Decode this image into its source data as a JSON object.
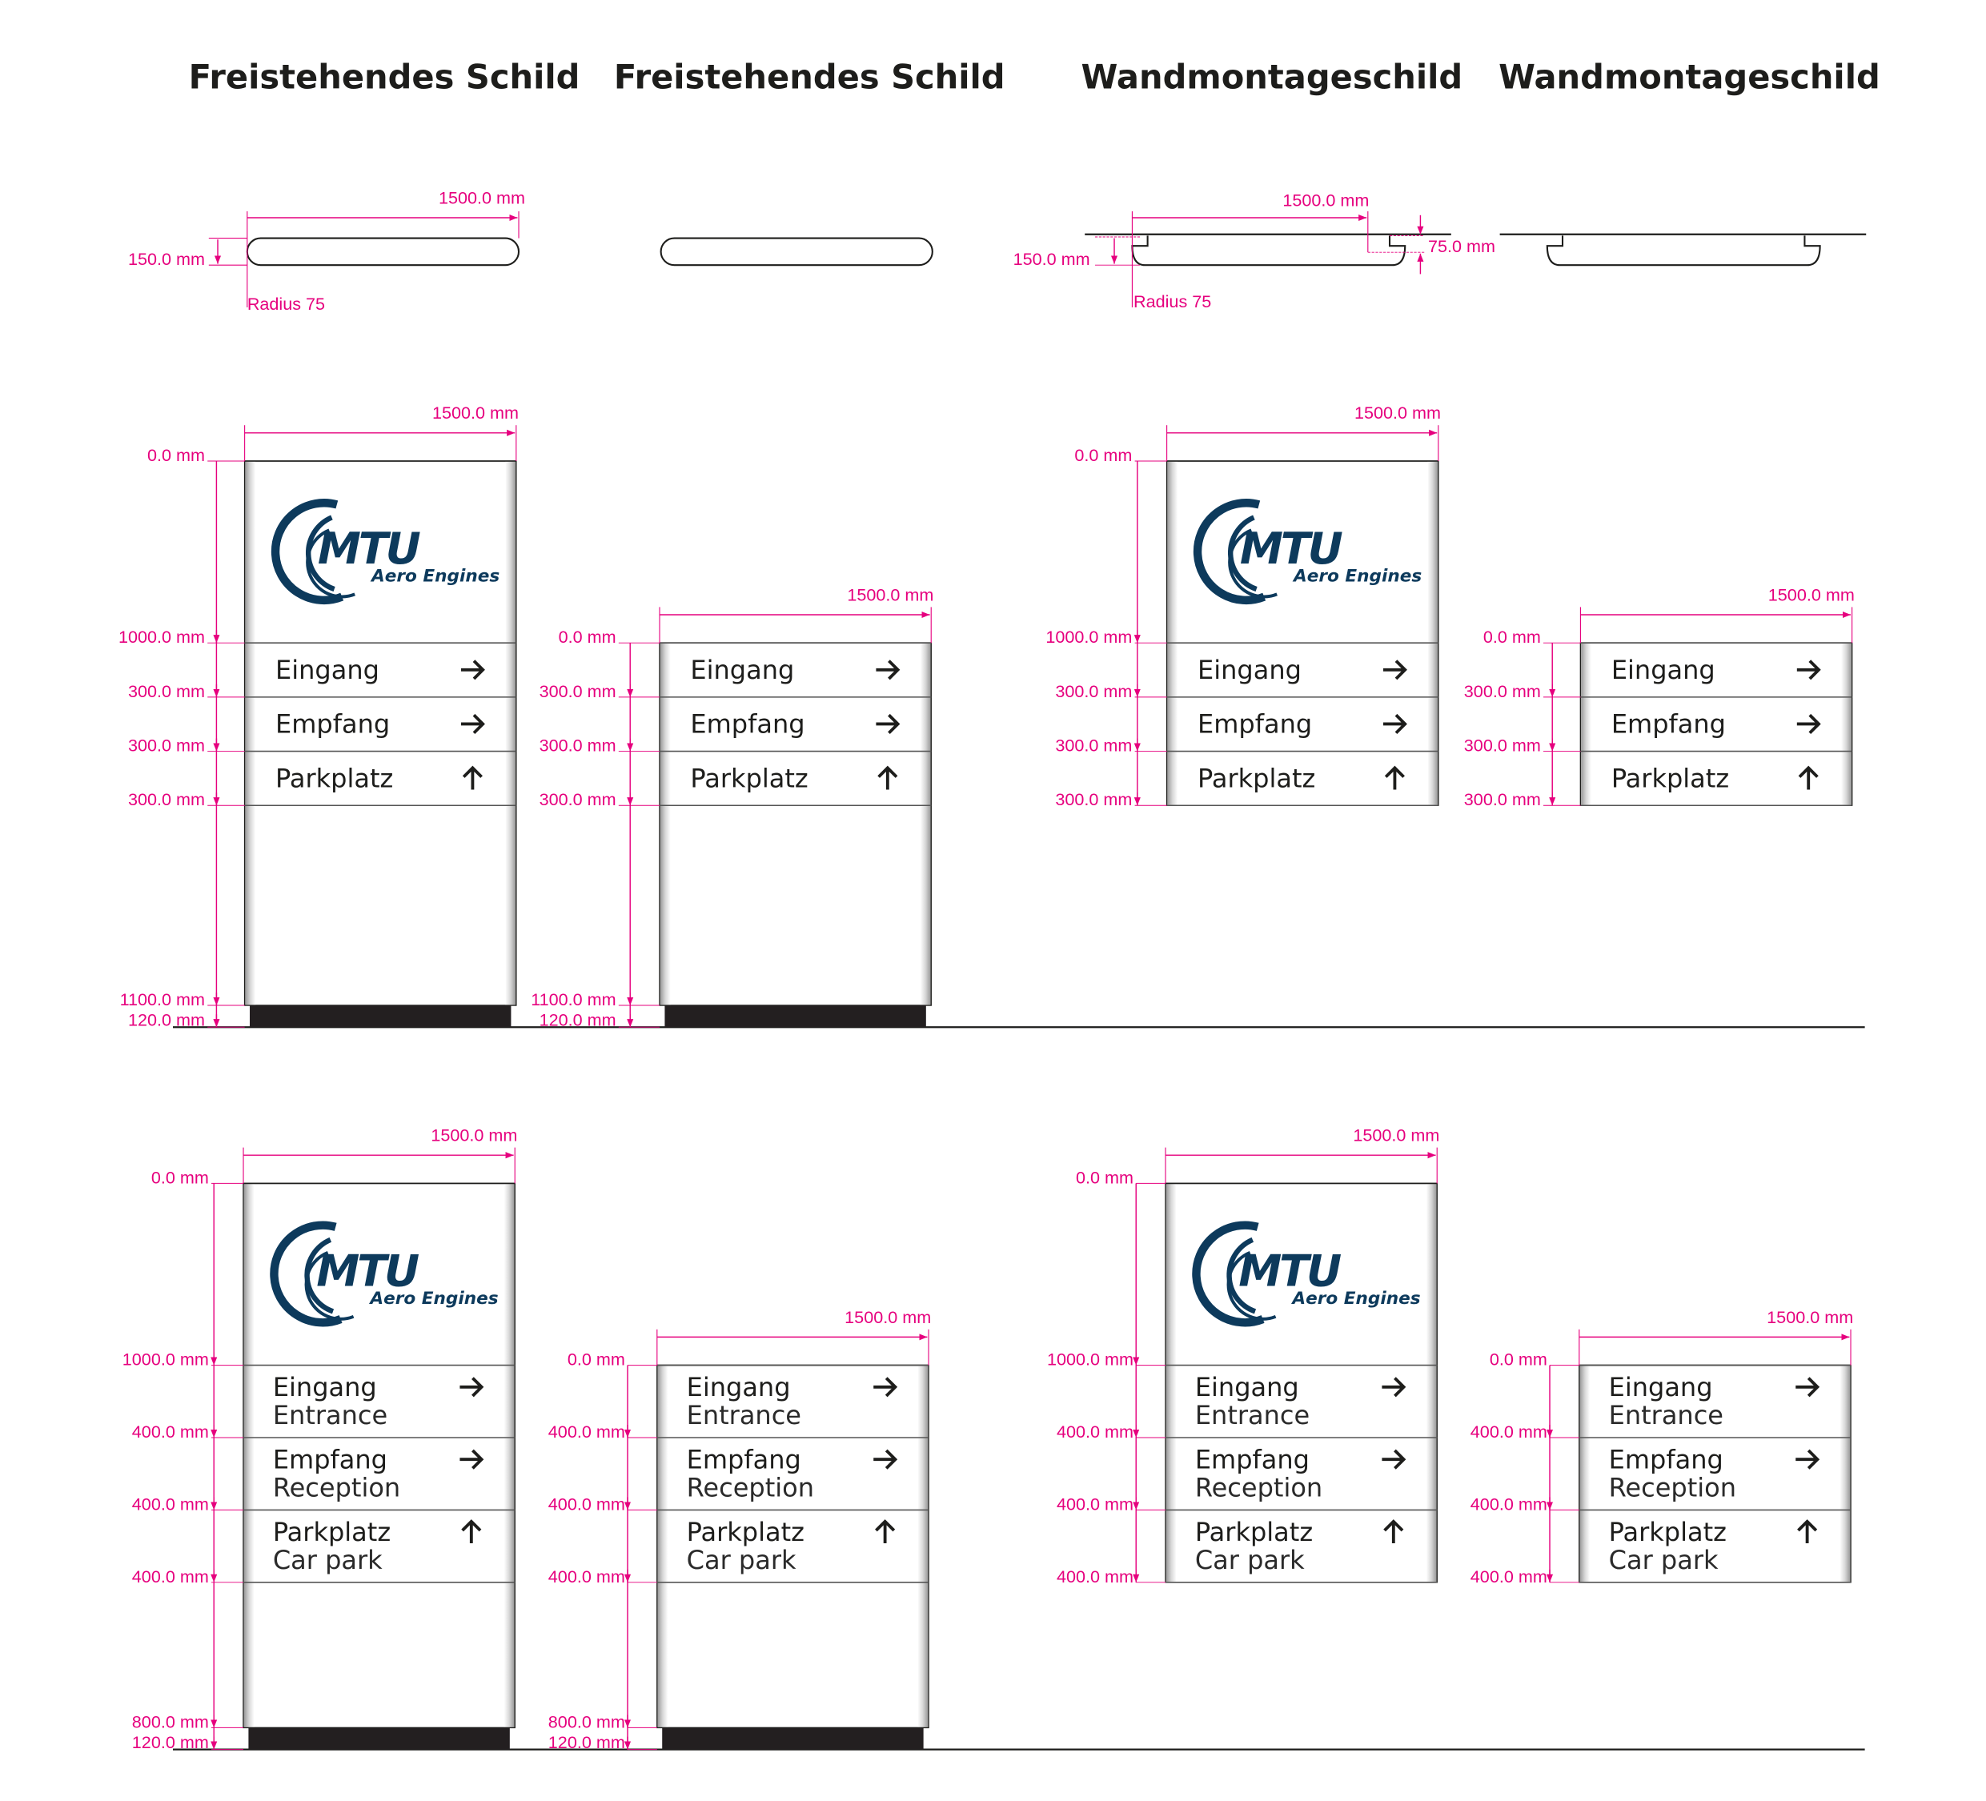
{
  "titles": [
    "Freistehendes Schild",
    "Freistehendes Schild",
    "Wandmontageschild",
    "Wandmontageschild"
  ],
  "colors": {
    "dimension": "#e6007e",
    "outline": "#1d1d1b",
    "logo": "#0d3a5c",
    "base": "#231f20"
  },
  "logo": {
    "mark": "MTU",
    "tagline": "Aero Engines"
  },
  "top_views": [
    {
      "type": "freestanding",
      "width_label": "1500.0 mm",
      "height_label": "150.0 mm",
      "radius_label": "Radius 75"
    },
    {
      "type": "freestanding"
    },
    {
      "type": "wall",
      "width_label": "1500.0 mm",
      "height_label": "150.0 mm",
      "depth_label": "75.0 mm",
      "radius_label": "Radius 75"
    },
    {
      "type": "wall"
    }
  ],
  "signs": [
    {
      "type": "freestanding",
      "logo": true,
      "width_label": "1500.0 mm",
      "dims": [
        "0.0 mm",
        "1000.0 mm",
        "300.0 mm",
        "300.0 mm",
        "300.0 mm",
        "1100.0 mm",
        "120.0 mm"
      ],
      "rows": [
        {
          "de": "Eingang",
          "arrow": "arrow-right"
        },
        {
          "de": "Empfang",
          "arrow": "arrow-right"
        },
        {
          "de": "Parkplatz",
          "arrow": "arrow-up"
        }
      ]
    },
    {
      "type": "freestanding",
      "logo": false,
      "width_label": "1500.0 mm",
      "dims": [
        "0.0 mm",
        "300.0 mm",
        "300.0 mm",
        "300.0 mm",
        "1100.0 mm",
        "120.0 mm"
      ],
      "rows": [
        {
          "de": "Eingang",
          "arrow": "arrow-right"
        },
        {
          "de": "Empfang",
          "arrow": "arrow-right"
        },
        {
          "de": "Parkplatz",
          "arrow": "arrow-up"
        }
      ]
    },
    {
      "type": "wall",
      "logo": true,
      "width_label": "1500.0 mm",
      "dims": [
        "0.0 mm",
        "1000.0 mm",
        "300.0 mm",
        "300.0 mm",
        "300.0 mm"
      ],
      "rows": [
        {
          "de": "Eingang",
          "arrow": "arrow-right"
        },
        {
          "de": "Empfang",
          "arrow": "arrow-right"
        },
        {
          "de": "Parkplatz",
          "arrow": "arrow-up"
        }
      ]
    },
    {
      "type": "wall",
      "logo": false,
      "width_label": "1500.0 mm",
      "dims": [
        "0.0 mm",
        "300.0 mm",
        "300.0 mm",
        "300.0 mm"
      ],
      "rows": [
        {
          "de": "Eingang",
          "arrow": "arrow-right"
        },
        {
          "de": "Empfang",
          "arrow": "arrow-right"
        },
        {
          "de": "Parkplatz",
          "arrow": "arrow-up"
        }
      ]
    },
    {
      "type": "freestanding",
      "logo": true,
      "width_label": "1500.0 mm",
      "dims": [
        "0.0 mm",
        "1000.0 mm",
        "400.0 mm",
        "400.0 mm",
        "400.0 mm",
        "800.0 mm",
        "120.0 mm"
      ],
      "rows": [
        {
          "de": "Eingang",
          "en": "Entrance",
          "arrow": "arrow-right"
        },
        {
          "de": "Empfang",
          "en": "Reception",
          "arrow": "arrow-right"
        },
        {
          "de": "Parkplatz",
          "en": "Car park",
          "arrow": "arrow-up"
        }
      ]
    },
    {
      "type": "freestanding",
      "logo": false,
      "width_label": "1500.0 mm",
      "dims": [
        "0.0 mm",
        "400.0 mm",
        "400.0 mm",
        "400.0 mm",
        "800.0 mm",
        "120.0 mm"
      ],
      "rows": [
        {
          "de": "Eingang",
          "en": "Entrance",
          "arrow": "arrow-right"
        },
        {
          "de": "Empfang",
          "en": "Reception",
          "arrow": "arrow-right"
        },
        {
          "de": "Parkplatz",
          "en": "Car park",
          "arrow": "arrow-up"
        }
      ]
    },
    {
      "type": "wall",
      "logo": true,
      "width_label": "1500.0 mm",
      "dims": [
        "0.0 mm",
        "1000.0 mm",
        "400.0 mm",
        "400.0 mm",
        "400.0 mm"
      ],
      "rows": [
        {
          "de": "Eingang",
          "en": "Entrance",
          "arrow": "arrow-right"
        },
        {
          "de": "Empfang",
          "en": "Reception",
          "arrow": "arrow-right"
        },
        {
          "de": "Parkplatz",
          "en": "Car park",
          "arrow": "arrow-up"
        }
      ]
    },
    {
      "type": "wall",
      "logo": false,
      "width_label": "1500.0 mm",
      "dims": [
        "0.0 mm",
        "400.0 mm",
        "400.0 mm",
        "400.0 mm"
      ],
      "rows": [
        {
          "de": "Eingang",
          "en": "Entrance",
          "arrow": "arrow-right"
        },
        {
          "de": "Empfang",
          "en": "Reception",
          "arrow": "arrow-right"
        },
        {
          "de": "Parkplatz",
          "en": "Car park",
          "arrow": "arrow-up"
        }
      ]
    }
  ]
}
